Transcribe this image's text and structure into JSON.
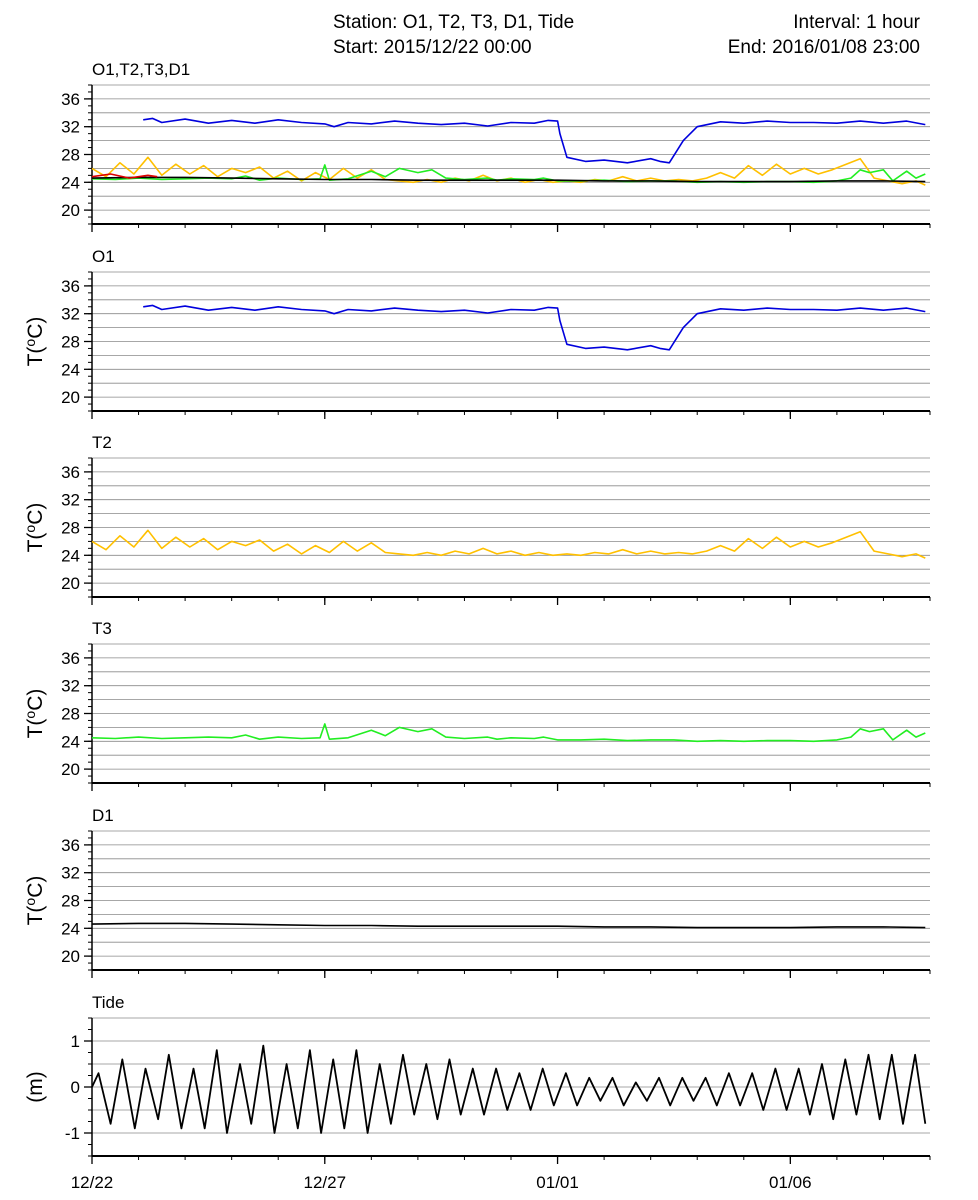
{
  "header": {
    "station": "Station: O1, T2, T3, D1, Tide",
    "start": "Start: 2015/12/22 00:00",
    "interval": "Interval: 1 hour",
    "end": "End: 2016/01/08 23:00"
  },
  "colors": {
    "O1": "#0000dd",
    "T2": "#ffc000",
    "T3": "#22ee22",
    "D1": "#000000",
    "Tide": "#000000",
    "extra_red": "#dd0000"
  },
  "chart_data": {
    "type": "line",
    "x_unit": "days since 2015/12/22 00:00",
    "x_range": [
      0,
      18
    ],
    "x_ticks": [
      {
        "x": 0,
        "label": "12/22"
      },
      {
        "x": 5,
        "label": "12/27"
      },
      {
        "x": 10,
        "label": "01/01"
      },
      {
        "x": 15,
        "label": "01/06"
      }
    ],
    "panels": [
      {
        "id": "combined",
        "title": "O1,T2,T3,D1",
        "ylabel": "",
        "ylim": [
          18,
          38
        ],
        "yticks": [
          20,
          24,
          28,
          32,
          36
        ],
        "series": [
          {
            "name": "O1",
            "ref": "O1"
          },
          {
            "name": "T2",
            "ref": "T2"
          },
          {
            "name": "T3",
            "ref": "T3"
          },
          {
            "name": "D1",
            "ref": "D1"
          },
          {
            "name": "",
            "ref": "extra_red"
          }
        ]
      },
      {
        "id": "O1",
        "title": "O1",
        "ylabel": "T(oC)",
        "ylim": [
          18,
          38
        ],
        "yticks": [
          20,
          24,
          28,
          32,
          36
        ],
        "series": [
          {
            "name": "O1",
            "ref": "O1"
          }
        ]
      },
      {
        "id": "T2",
        "title": "T2",
        "ylabel": "T(oC)",
        "ylim": [
          18,
          38
        ],
        "yticks": [
          20,
          24,
          28,
          32,
          36
        ],
        "series": [
          {
            "name": "T2",
            "ref": "T2"
          }
        ]
      },
      {
        "id": "T3",
        "title": "T3",
        "ylabel": "T(oC)",
        "ylim": [
          18,
          38
        ],
        "yticks": [
          20,
          24,
          28,
          32,
          36
        ],
        "series": [
          {
            "name": "T3",
            "ref": "T3"
          }
        ]
      },
      {
        "id": "D1",
        "title": "D1",
        "ylabel": "T(oC)",
        "ylim": [
          18,
          38
        ],
        "yticks": [
          20,
          24,
          28,
          32,
          36
        ],
        "series": [
          {
            "name": "D1",
            "ref": "D1"
          }
        ]
      },
      {
        "id": "Tide",
        "title": "Tide",
        "ylabel": "(m)",
        "ylim": [
          -1.5,
          1.5
        ],
        "yticks": [
          -1,
          0,
          1
        ],
        "series": [
          {
            "name": "Tide",
            "ref": "Tide"
          }
        ]
      }
    ],
    "data": {
      "O1": {
        "x": [
          1.1,
          1.3,
          1.5,
          2.0,
          2.5,
          3.0,
          3.5,
          4.0,
          4.5,
          5.0,
          5.2,
          5.5,
          6.0,
          6.5,
          7.0,
          7.5,
          8.0,
          8.5,
          9.0,
          9.5,
          9.8,
          10.0,
          10.05,
          10.2,
          10.6,
          11.0,
          11.5,
          12.0,
          12.2,
          12.4,
          12.7,
          13.0,
          13.5,
          14.0,
          14.5,
          15.0,
          15.5,
          16.0,
          16.5,
          17.0,
          17.5,
          17.9
        ],
        "y": [
          33.0,
          33.2,
          32.6,
          33.1,
          32.5,
          32.9,
          32.5,
          33.0,
          32.6,
          32.4,
          32.0,
          32.6,
          32.4,
          32.8,
          32.5,
          32.3,
          32.5,
          32.1,
          32.6,
          32.5,
          32.9,
          32.8,
          31.0,
          27.6,
          27.0,
          27.2,
          26.8,
          27.4,
          27.0,
          26.8,
          30.0,
          32.0,
          32.7,
          32.5,
          32.8,
          32.6,
          32.6,
          32.5,
          32.8,
          32.5,
          32.8,
          32.3
        ]
      },
      "T2": {
        "x": [
          0.0,
          0.3,
          0.6,
          0.9,
          1.2,
          1.5,
          1.8,
          2.1,
          2.4,
          2.7,
          3.0,
          3.3,
          3.6,
          3.9,
          4.2,
          4.5,
          4.8,
          5.1,
          5.4,
          5.7,
          6.0,
          6.3,
          6.6,
          6.9,
          7.2,
          7.5,
          7.8,
          8.1,
          8.4,
          8.7,
          9.0,
          9.3,
          9.6,
          9.9,
          10.2,
          10.5,
          10.8,
          11.1,
          11.4,
          11.7,
          12.0,
          12.3,
          12.6,
          12.9,
          13.2,
          13.5,
          13.8,
          14.1,
          14.4,
          14.7,
          15.0,
          15.3,
          15.6,
          15.9,
          16.2,
          16.5,
          16.8,
          17.1,
          17.4,
          17.7,
          17.9
        ],
        "y": [
          26.0,
          24.8,
          26.8,
          25.2,
          27.6,
          25.0,
          26.6,
          25.2,
          26.4,
          24.8,
          26.0,
          25.4,
          26.2,
          24.6,
          25.6,
          24.2,
          25.4,
          24.4,
          26.0,
          24.6,
          25.8,
          24.4,
          24.2,
          24.0,
          24.4,
          24.0,
          24.6,
          24.2,
          25.0,
          24.2,
          24.6,
          24.0,
          24.4,
          24.0,
          24.2,
          24.0,
          24.4,
          24.2,
          24.8,
          24.2,
          24.6,
          24.2,
          24.4,
          24.2,
          24.6,
          25.4,
          24.6,
          26.4,
          25.0,
          26.6,
          25.2,
          26.0,
          25.2,
          25.8,
          26.6,
          27.4,
          24.6,
          24.2,
          23.8,
          24.2,
          23.6
        ]
      },
      "T3": {
        "x": [
          0.0,
          0.5,
          1.0,
          1.5,
          2.0,
          2.5,
          3.0,
          3.3,
          3.6,
          4.0,
          4.5,
          4.9,
          5.0,
          5.1,
          5.5,
          6.0,
          6.3,
          6.6,
          7.0,
          7.3,
          7.6,
          8.0,
          8.5,
          8.7,
          9.0,
          9.5,
          9.7,
          10.0,
          10.5,
          11.0,
          11.5,
          12.0,
          12.5,
          13.0,
          13.5,
          14.0,
          14.5,
          15.0,
          15.5,
          16.0,
          16.3,
          16.5,
          16.7,
          17.0,
          17.2,
          17.5,
          17.7,
          17.9
        ],
        "y": [
          24.5,
          24.4,
          24.6,
          24.4,
          24.5,
          24.6,
          24.5,
          24.9,
          24.3,
          24.6,
          24.4,
          24.5,
          26.5,
          24.3,
          24.5,
          25.6,
          24.8,
          26.0,
          25.4,
          25.8,
          24.6,
          24.4,
          24.6,
          24.3,
          24.5,
          24.4,
          24.6,
          24.2,
          24.2,
          24.3,
          24.1,
          24.2,
          24.2,
          24.0,
          24.1,
          24.0,
          24.1,
          24.1,
          24.0,
          24.2,
          24.6,
          25.8,
          25.4,
          25.8,
          24.2,
          25.6,
          24.6,
          25.2
        ]
      },
      "D1": {
        "x": [
          0.0,
          1.0,
          2.0,
          3.0,
          4.0,
          5.0,
          6.0,
          7.0,
          8.0,
          9.0,
          10.0,
          11.0,
          12.0,
          13.0,
          14.0,
          15.0,
          16.0,
          17.0,
          17.9
        ],
        "y": [
          24.6,
          24.7,
          24.7,
          24.6,
          24.5,
          24.4,
          24.4,
          24.3,
          24.3,
          24.3,
          24.3,
          24.2,
          24.2,
          24.1,
          24.1,
          24.1,
          24.2,
          24.2,
          24.1
        ]
      },
      "extra_red": {
        "x": [
          0.0,
          0.4,
          0.8,
          1.2,
          1.4
        ],
        "y": [
          24.8,
          25.2,
          24.6,
          25.0,
          24.8
        ]
      },
      "Tide": {
        "x": [
          0.0,
          0.14,
          0.4,
          0.65,
          0.92,
          1.15,
          1.42,
          1.65,
          1.92,
          2.18,
          2.42,
          2.68,
          2.9,
          3.18,
          3.42,
          3.68,
          3.92,
          4.18,
          4.42,
          4.68,
          4.92,
          5.18,
          5.42,
          5.68,
          5.92,
          6.18,
          6.42,
          6.68,
          6.92,
          7.18,
          7.42,
          7.68,
          7.92,
          8.18,
          8.42,
          8.68,
          8.92,
          9.18,
          9.42,
          9.68,
          9.92,
          10.18,
          10.42,
          10.68,
          10.92,
          11.18,
          11.42,
          11.68,
          11.92,
          12.18,
          12.42,
          12.68,
          12.92,
          13.18,
          13.42,
          13.68,
          13.92,
          14.18,
          14.42,
          14.68,
          14.92,
          15.18,
          15.42,
          15.68,
          15.92,
          16.18,
          16.42,
          16.68,
          16.92,
          17.18,
          17.42,
          17.68,
          17.9
        ],
        "y": [
          0.0,
          0.3,
          -0.8,
          0.6,
          -0.9,
          0.4,
          -0.7,
          0.7,
          -0.9,
          0.4,
          -0.9,
          0.8,
          -1.0,
          0.5,
          -0.8,
          0.9,
          -1.0,
          0.5,
          -0.9,
          0.8,
          -1.0,
          0.6,
          -0.9,
          0.8,
          -1.0,
          0.5,
          -0.8,
          0.7,
          -0.6,
          0.5,
          -0.7,
          0.6,
          -0.6,
          0.4,
          -0.6,
          0.4,
          -0.5,
          0.3,
          -0.5,
          0.4,
          -0.4,
          0.3,
          -0.4,
          0.2,
          -0.3,
          0.2,
          -0.4,
          0.1,
          -0.3,
          0.2,
          -0.4,
          0.2,
          -0.3,
          0.2,
          -0.4,
          0.3,
          -0.4,
          0.3,
          -0.5,
          0.4,
          -0.5,
          0.4,
          -0.6,
          0.5,
          -0.7,
          0.6,
          -0.6,
          0.7,
          -0.7,
          0.7,
          -0.8,
          0.7,
          -0.8
        ]
      }
    }
  }
}
